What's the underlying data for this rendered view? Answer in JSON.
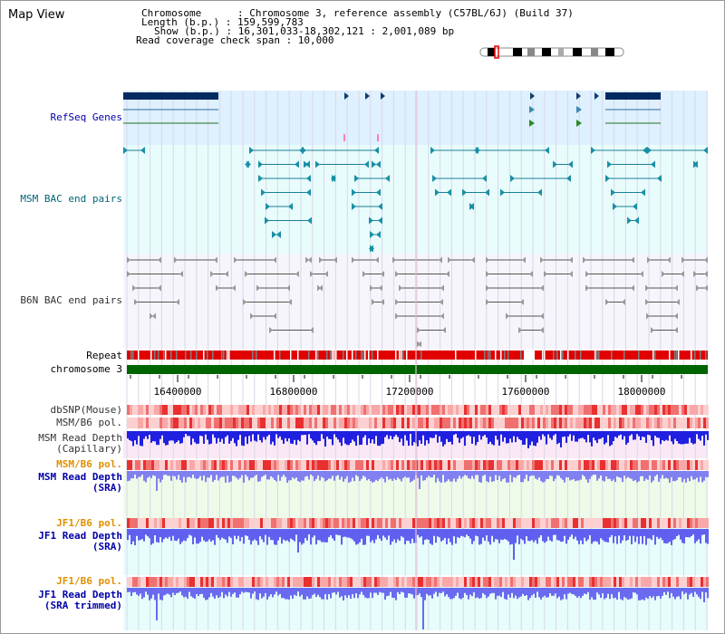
{
  "title": "Map View",
  "header": {
    "chromosome": "Chromosome      : Chromosome 3, reference assembly (C57BL/6J) (Build 37)",
    "length": "Length (b.p.) : 159,599,783",
    "show": "Show (b.p.) : 16,301,033-18,302,121 : 2,001,089 bp",
    "coverage": "Read coverage check span : 10,000"
  },
  "tracks": {
    "refseq": "RefSeq Genes",
    "msm_bac": "MSM BAC end pairs",
    "b6n_bac": "B6N BAC end pairs",
    "repeat": "Repeat",
    "chrom": "chromosome 3",
    "dbsnp": "dbSNP(Mouse)",
    "msm_pol": "MSM/B6 pol.",
    "msm_cap_1": "MSM Read Depth",
    "msm_cap_2": "(Capillary)",
    "msm_pol2": "MSM/B6 pol.",
    "msm_sra_1": "MSM Read Depth",
    "msm_sra_2": "(SRA)",
    "jf1_pol": "JF1/B6 pol.",
    "jf1_sra_1": "JF1 Read Depth",
    "jf1_sra_2": "(SRA)",
    "jf1_pol2": "JF1/B6 pol.",
    "jf1_trim_1": "JF1 Read Depth",
    "jf1_trim_2": "(SRA trimmed)"
  },
  "axis": {
    "ticks": [
      "16400000",
      "16800000",
      "17200000",
      "17600000",
      "18000000"
    ]
  },
  "colors": {
    "refseq_bg": "#dff0ff",
    "msm_bg": "#e8fcfc",
    "b6n_bg": "#f5f5fb",
    "chromosome": "#006400",
    "repeat": "#e00000",
    "depth": "#4040ff",
    "label_blue": "#0000aa",
    "label_teal": "#006677",
    "label_orange": "#e09000"
  }
}
